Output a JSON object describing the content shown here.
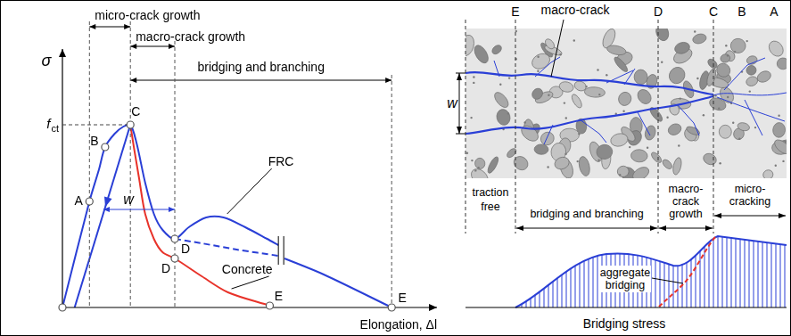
{
  "chart_data": {
    "type": "line",
    "x_label": "Elongation, Δl",
    "y_label": "σ",
    "xlim": [
      0,
      430
    ],
    "ylim": [
      0,
      290
    ],
    "tick_labels": false,
    "grid": false,
    "series": [
      {
        "name": "FRC",
        "color": "#2a3fd6",
        "line_style": "solid",
        "x": [
          0,
          31,
          42,
          49,
          60,
          70,
          78,
          85,
          95,
          105,
          115,
          129,
          145,
          165,
          185,
          210,
          235,
          248
        ],
        "values": [
          0,
          119,
          155,
          180,
          195,
          203,
          205,
          185,
          140,
          105,
          87,
          77,
          90,
          101,
          101,
          90,
          77,
          70
        ]
      },
      {
        "color": "#2a3fd6",
        "line_style": "dashed",
        "x": [
          129,
          160,
          200,
          248
        ],
        "values": [
          77,
          72,
          65,
          58
        ]
      },
      {
        "color": "#2a3fd6",
        "line_style": "solid",
        "x": [
          255,
          300,
          378
        ],
        "values": [
          55,
          37,
          0
        ]
      },
      {
        "name": "Concrete",
        "color": "#e8332a",
        "line_style": "solid",
        "x": [
          78,
          82,
          88,
          95,
          105,
          115,
          129,
          160,
          190,
          238
        ],
        "values": [
          205,
          180,
          145,
          105,
          77,
          62,
          55,
          35,
          17,
          2
        ]
      },
      {
        "color": "#2a3fd6",
        "line_style": "solid",
        "marker": "arrow",
        "x": [
          78,
          14
        ],
        "values": [
          205,
          0
        ]
      }
    ],
    "points": [
      {
        "label": "A",
        "x": 31,
        "y": 119
      },
      {
        "label": "B",
        "x": 49,
        "y": 180
      },
      {
        "label": "C",
        "x": 78,
        "y": 205
      },
      {
        "label": "D",
        "x": 129,
        "y": 77
      },
      {
        "label": "D",
        "x": 129,
        "y": 55
      },
      {
        "label": "E",
        "x": 238,
        "y": 2
      },
      {
        "label": "E",
        "x": 378,
        "y": 0
      }
    ],
    "reference_line": {
      "text": "f",
      "subscript": "ct",
      "y": 205,
      "x_to": 78
    },
    "dimension": {
      "text": "w",
      "from": 47,
      "to": 129,
      "y": 110
    },
    "spans": [
      {
        "text": "micro-crack growth",
        "from": 31,
        "to": 78
      },
      {
        "text": "macro-crack growth",
        "from": 78,
        "to": 129
      },
      {
        "text": "bridging and branching",
        "from": 78,
        "to": 378
      }
    ],
    "axis_break": {
      "x": 251,
      "y_from": 48,
      "y_to": 80
    }
  },
  "diagram": {
    "top_label": "macro-crack",
    "sections": [
      "E",
      "D",
      "C",
      "B",
      "A"
    ],
    "crack_width_label": "w",
    "zones": [
      [
        "traction",
        "free"
      ],
      [
        "bridging and branching"
      ],
      [
        "macro-",
        "crack",
        "growth"
      ],
      [
        "micro-",
        "cracking"
      ]
    ],
    "aggregate_label": [
      "aggregate",
      "bridging"
    ],
    "stress_label": "Bridging stress"
  }
}
